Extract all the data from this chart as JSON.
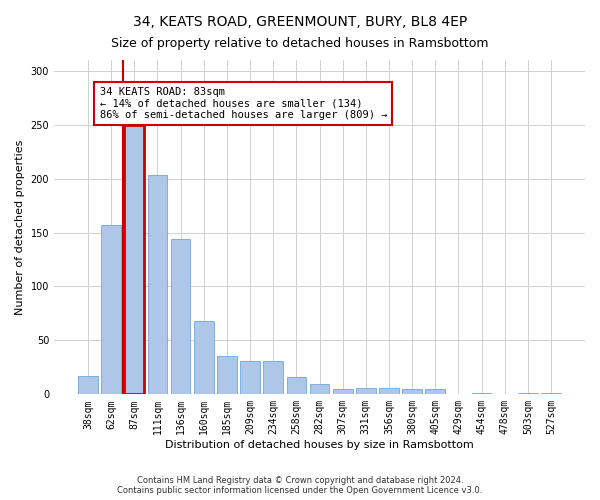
{
  "title": "34, KEATS ROAD, GREENMOUNT, BURY, BL8 4EP",
  "subtitle": "Size of property relative to detached houses in Ramsbottom",
  "xlabel": "Distribution of detached houses by size in Ramsbottom",
  "ylabel": "Number of detached properties",
  "footnote": "Contains HM Land Registry data © Crown copyright and database right 2024.\nContains public sector information licensed under the Open Government Licence v3.0.",
  "bar_labels": [
    "38sqm",
    "62sqm",
    "87sqm",
    "111sqm",
    "136sqm",
    "160sqm",
    "185sqm",
    "209sqm",
    "234sqm",
    "258sqm",
    "282sqm",
    "307sqm",
    "331sqm",
    "356sqm",
    "380sqm",
    "405sqm",
    "429sqm",
    "454sqm",
    "478sqm",
    "503sqm",
    "527sqm"
  ],
  "bar_values": [
    17,
    157,
    250,
    203,
    144,
    68,
    36,
    31,
    31,
    16,
    10,
    5,
    6,
    6,
    5,
    5,
    0,
    1,
    0,
    1,
    1
  ],
  "bar_color": "#aec6e8",
  "bar_edge_color": "#5b9bd5",
  "highlight_bar_index": 2,
  "highlight_color": "#cc0000",
  "annotation_text": "34 KEATS ROAD: 83sqm\n← 14% of detached houses are smaller (134)\n86% of semi-detached houses are larger (809) →",
  "annotation_box_color": "#ffffff",
  "annotation_box_edge_color": "#cc0000",
  "vline_x": 1.5,
  "ylim": [
    0,
    310
  ],
  "yticks": [
    0,
    50,
    100,
    150,
    200,
    250,
    300
  ],
  "background_color": "#ffffff",
  "grid_color": "#d0d0d0",
  "title_fontsize": 10,
  "subtitle_fontsize": 9,
  "axis_label_fontsize": 8,
  "tick_fontsize": 7,
  "annotation_fontsize": 7.5,
  "footnote_fontsize": 6
}
